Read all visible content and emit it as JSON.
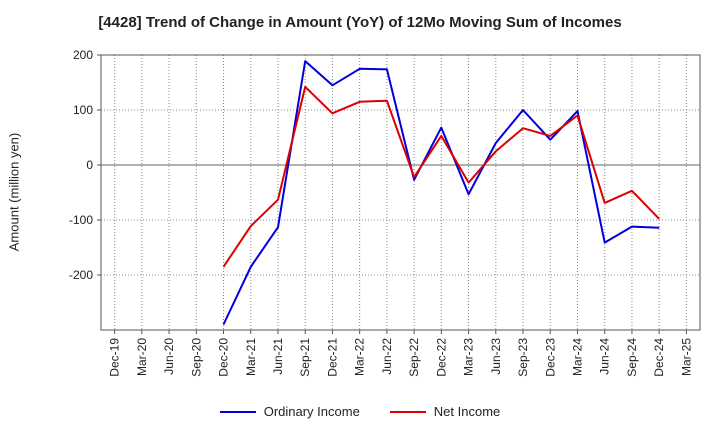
{
  "chart_data": {
    "type": "line",
    "title": "[4428]  Trend of Change in Amount (YoY) of 12Mo Moving Sum of Incomes",
    "ylabel": "Amount (million yen)",
    "xlabel": "",
    "ylim": [
      -300,
      200
    ],
    "y_ticks": [
      200,
      100,
      0,
      -100,
      -200
    ],
    "x": [
      "Dec-19",
      "Mar-20",
      "Jun-20",
      "Sep-20",
      "Dec-20",
      "Mar-21",
      "Jun-21",
      "Sep-21",
      "Dec-21",
      "Mar-22",
      "Jun-22",
      "Sep-22",
      "Dec-22",
      "Mar-23",
      "Jun-23",
      "Sep-23",
      "Dec-23",
      "Mar-24",
      "Jun-24",
      "Sep-24",
      "Dec-24",
      "Mar-25"
    ],
    "grid": true,
    "legend_position": "bottom",
    "series": [
      {
        "name": "Ordinary Income",
        "color": "#0000dd",
        "values": [
          null,
          null,
          null,
          null,
          -290,
          -185,
          -113,
          189,
          145,
          175,
          174,
          -27,
          68,
          -53,
          40,
          100,
          46,
          98,
          -141,
          -112,
          -114,
          null
        ]
      },
      {
        "name": "Net Income",
        "color": "#dd0000",
        "values": [
          null,
          null,
          null,
          null,
          -185,
          -111,
          -63,
          142,
          94,
          115,
          117,
          -22,
          53,
          -32,
          25,
          67,
          53,
          90,
          -69,
          -47,
          -98,
          null
        ]
      }
    ]
  }
}
